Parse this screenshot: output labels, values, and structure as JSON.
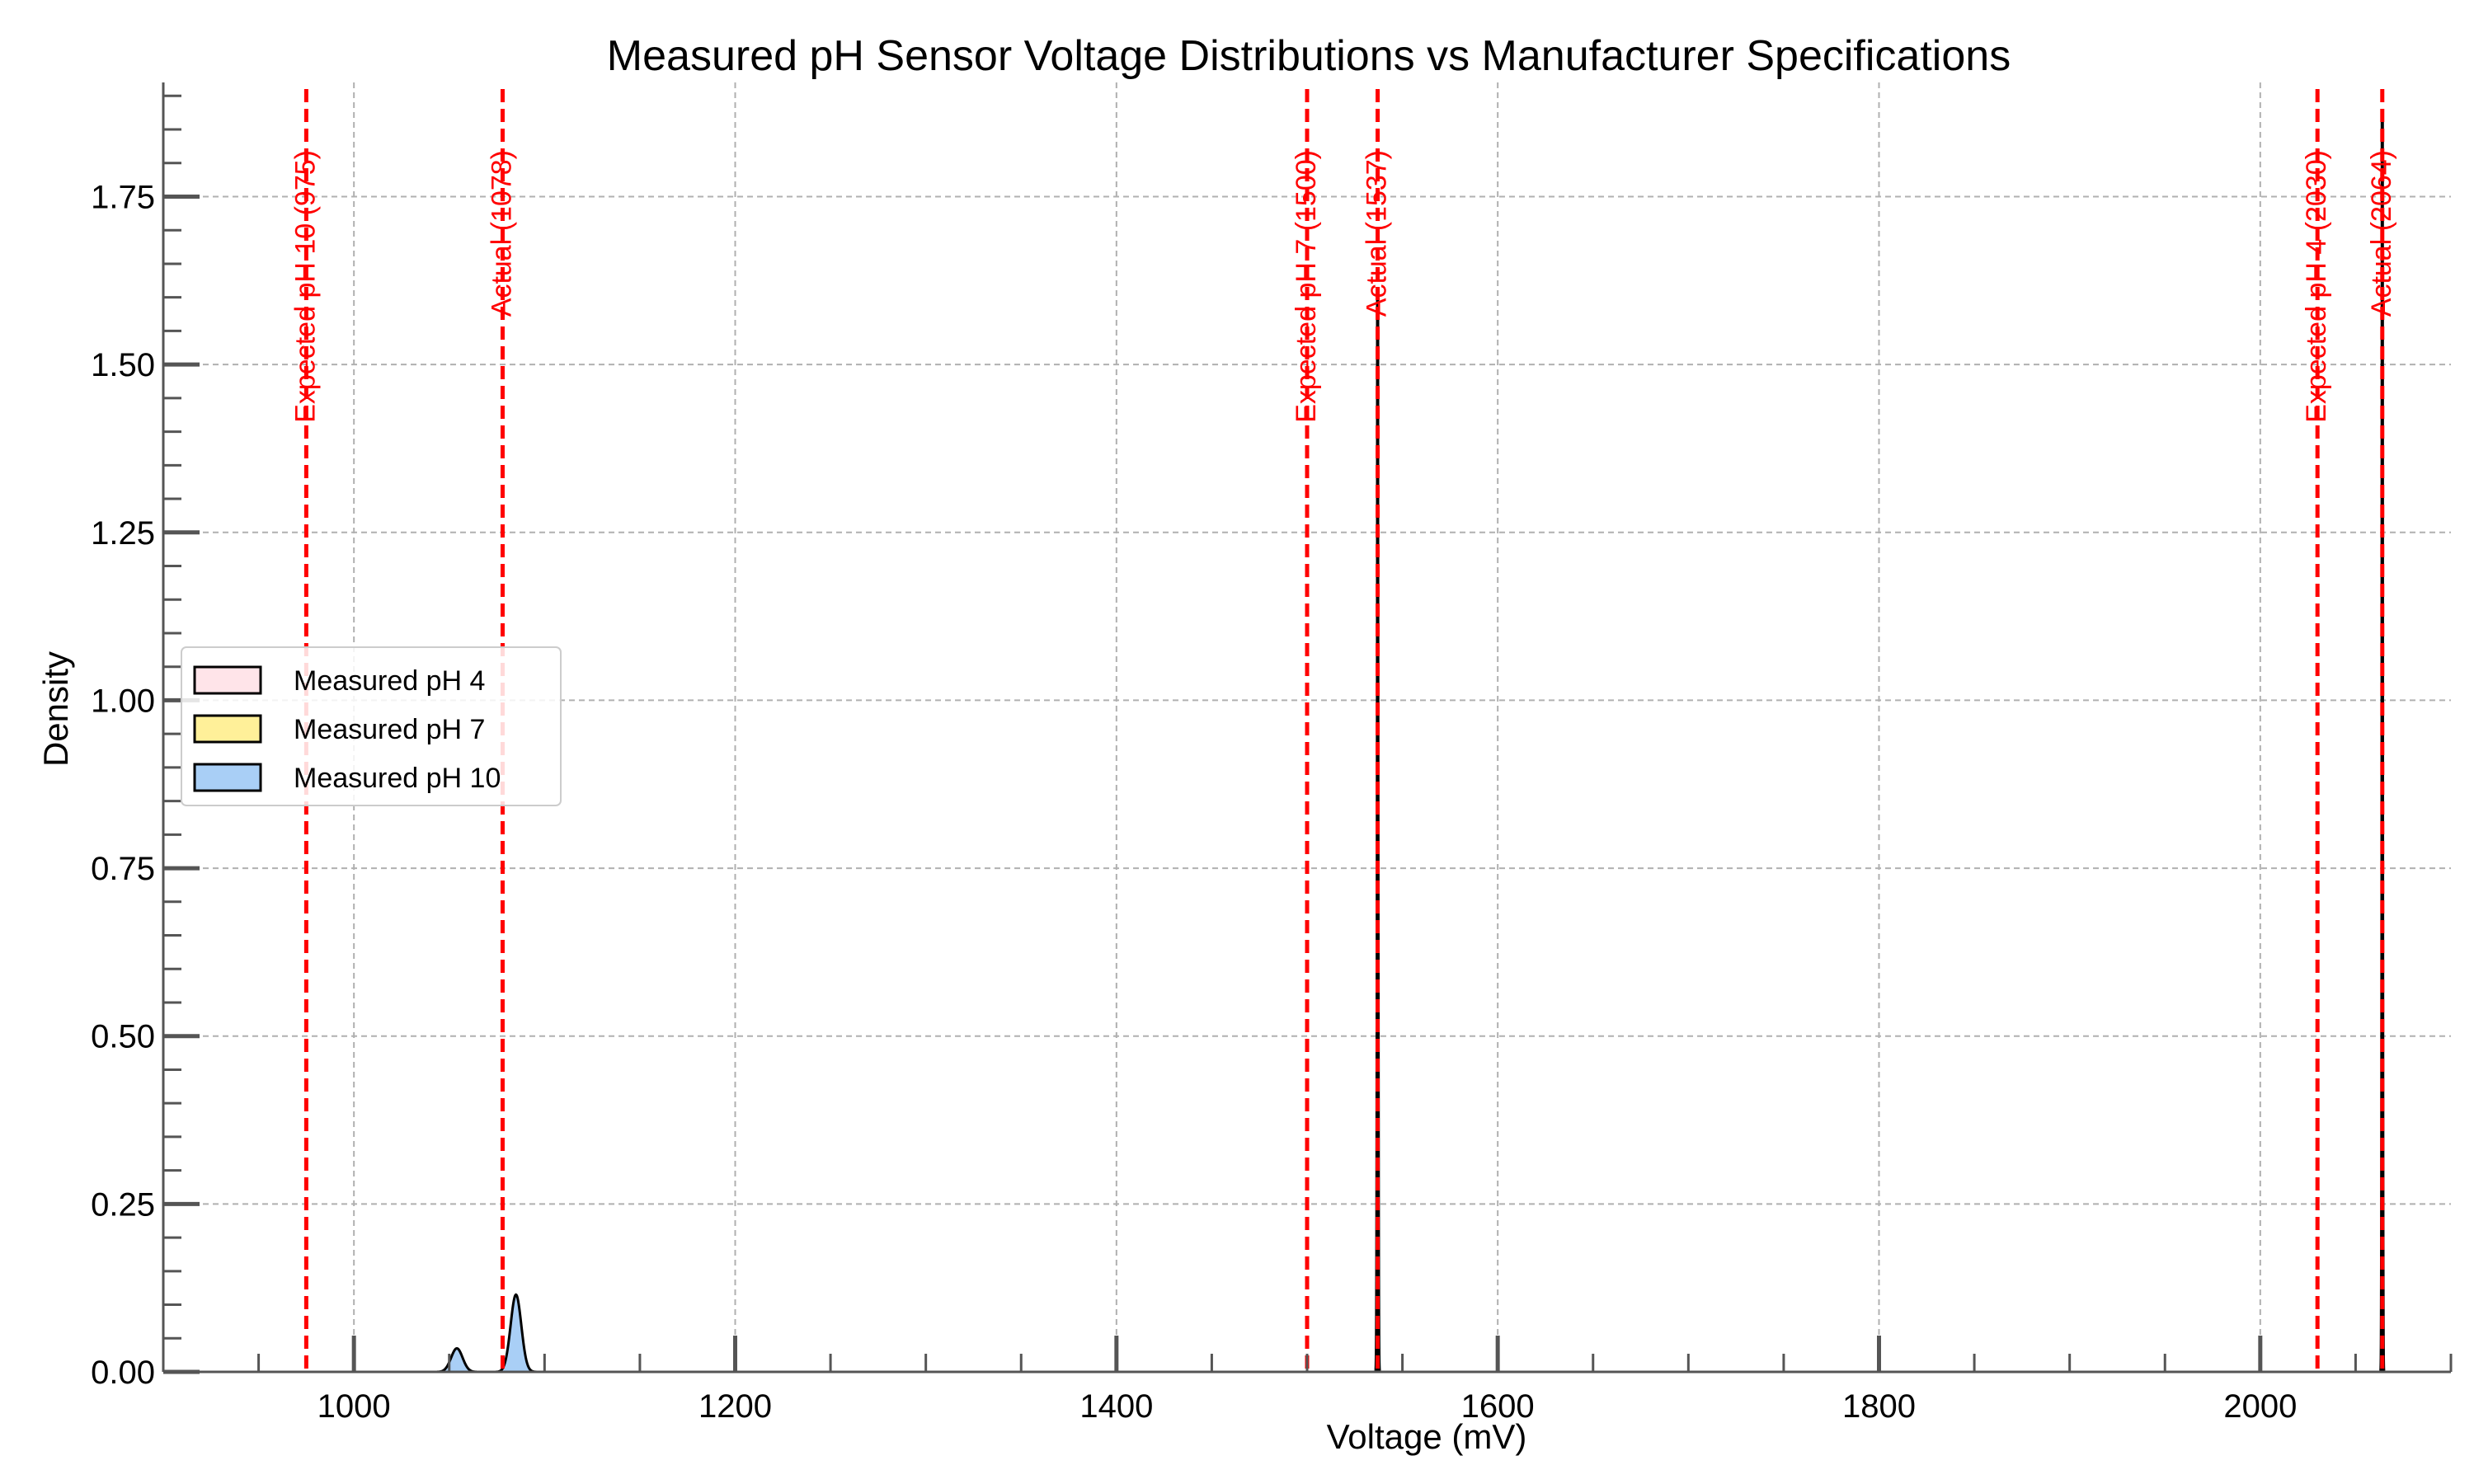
{
  "chart_data": {
    "type": "area",
    "title": "Measured pH Sensor Voltage Distributions vs Manufacturer Specifications",
    "xlabel": "Voltage (mV)",
    "ylabel": "Density",
    "xlim": [
      900,
      2100
    ],
    "ylim": [
      0,
      1.92
    ],
    "x_ticks": [
      1000,
      1200,
      1400,
      1600,
      1800,
      2000
    ],
    "x_minor_step": 50,
    "y_ticks": [
      0.0,
      0.25,
      0.5,
      0.75,
      1.0,
      1.25,
      1.5,
      1.75
    ],
    "y_tick_labels": [
      "0.00",
      "0.25",
      "0.50",
      "0.75",
      "1.00",
      "1.25",
      "1.50",
      "1.75"
    ],
    "y_minor_step": 0.05,
    "grid": true,
    "legend_position": "center-left",
    "series": [
      {
        "name": "Measured pH 4",
        "color": "#ffe4e9",
        "peaks": [
          {
            "mean": 2064,
            "sd": 0.25,
            "height": 1.88
          }
        ]
      },
      {
        "name": "Measured pH 7",
        "color": "#fff099",
        "peaks": [
          {
            "mean": 1537,
            "sd": 0.3,
            "height": 1.6
          }
        ]
      },
      {
        "name": "Measured pH 10",
        "color": "#a9cff6",
        "peaks": [
          {
            "mean": 1054,
            "sd": 3.0,
            "height": 0.035
          },
          {
            "mean": 1085,
            "sd": 2.8,
            "height": 0.115
          }
        ]
      }
    ],
    "reference_lines": [
      {
        "x": 975,
        "label": "Expected pH 10 (975)",
        "color": "#ff0000"
      },
      {
        "x": 1078,
        "label": "Actual (1078)",
        "color": "#ff0000"
      },
      {
        "x": 1500,
        "label": "Expected  pH 7 (1500)",
        "color": "#ff0000"
      },
      {
        "x": 1537,
        "label": "Actual (1537)",
        "color": "#ff0000"
      },
      {
        "x": 2030,
        "label": "Expected pH 4 (2030)",
        "color": "#ff0000"
      },
      {
        "x": 2064,
        "label": "Actual (2064)",
        "color": "#ff0000"
      }
    ]
  }
}
